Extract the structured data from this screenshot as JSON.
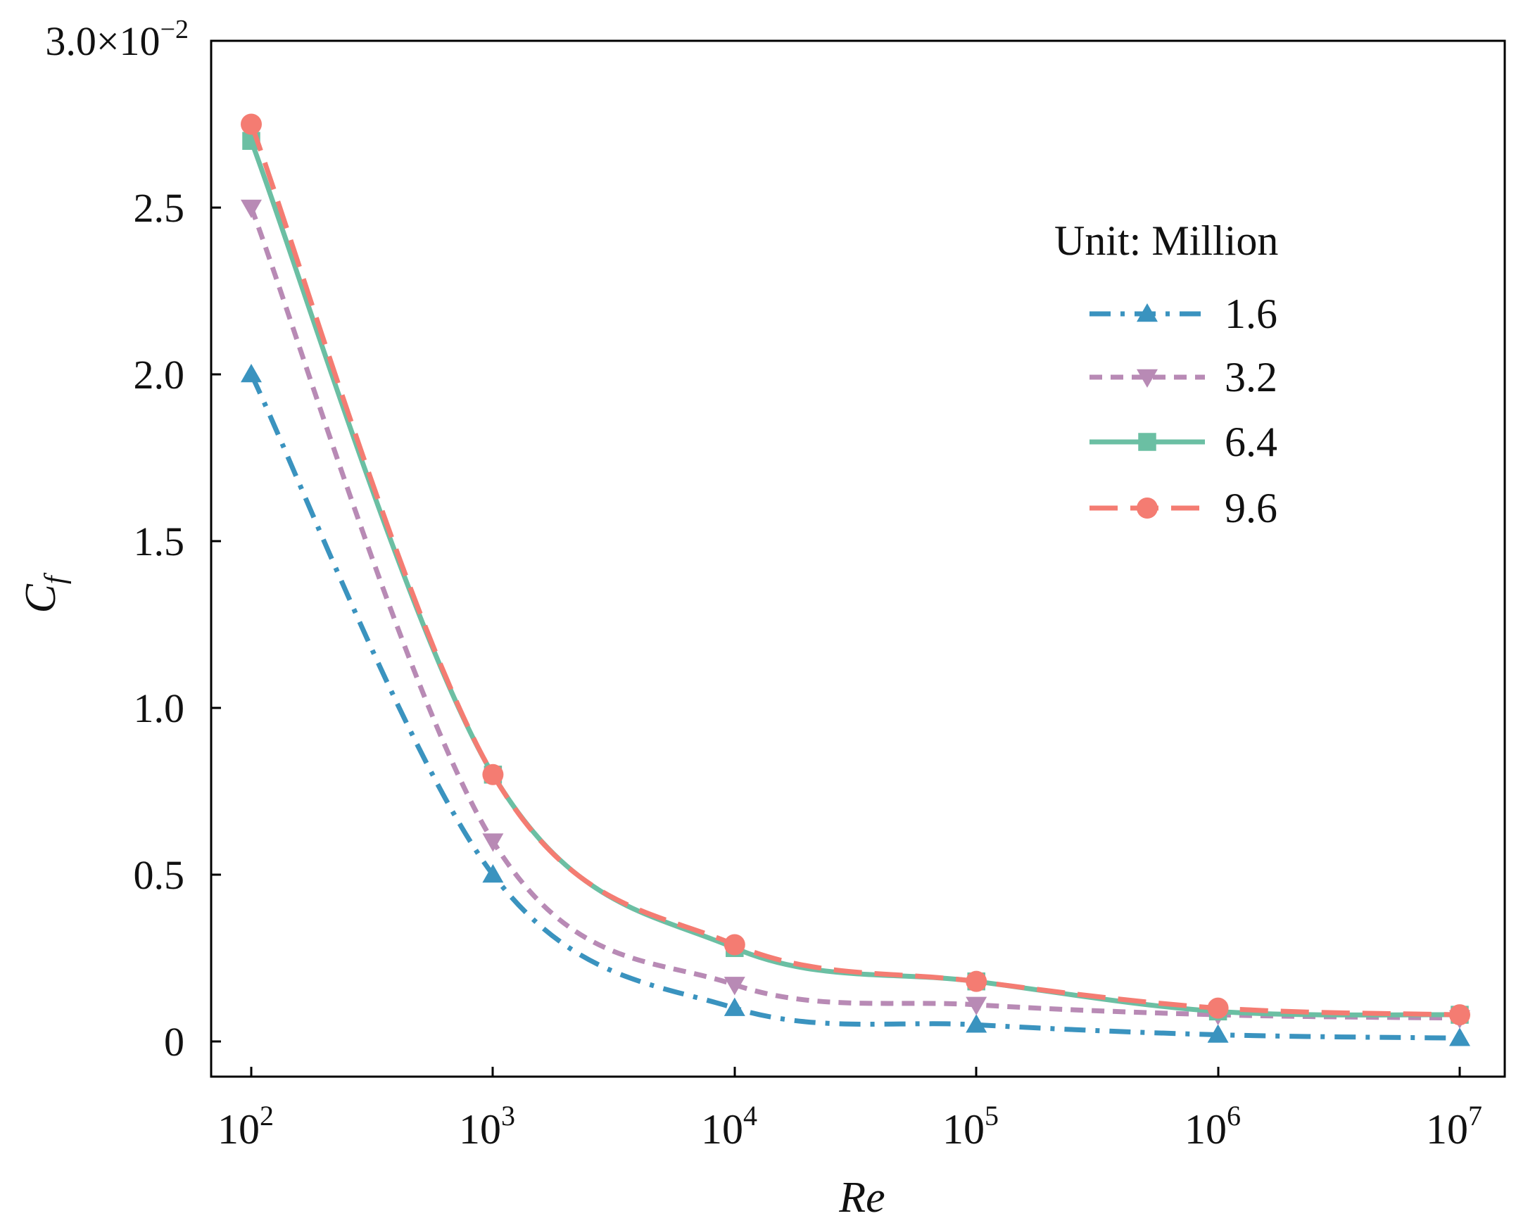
{
  "chart_data": {
    "type": "line",
    "title": "",
    "xlabel": "Re",
    "ylabel_main": "C",
    "ylabel_sub": "f",
    "x": [
      100,
      1000,
      10000,
      100000,
      1000000,
      10000000
    ],
    "x_scale": "log",
    "x_ticks": [
      {
        "base": "10",
        "exp": "2"
      },
      {
        "base": "10",
        "exp": "3"
      },
      {
        "base": "10",
        "exp": "4"
      },
      {
        "base": "10",
        "exp": "5"
      },
      {
        "base": "10",
        "exp": "6"
      },
      {
        "base": "10",
        "exp": "7"
      }
    ],
    "ylim": [
      -0.001,
      0.03
    ],
    "y_ticks": [
      {
        "value": 0,
        "label": "0"
      },
      {
        "value": 0.005,
        "label": "0.5"
      },
      {
        "value": 0.01,
        "label": "1.0"
      },
      {
        "value": 0.015,
        "label": "1.5"
      },
      {
        "value": 0.02,
        "label": "2.0"
      },
      {
        "value": 0.025,
        "label": "2.5"
      },
      {
        "value": 0.03,
        "label": "3.0×10",
        "exp": "−2"
      }
    ],
    "legend_title": "Unit: Million",
    "legend_position": "top-right",
    "series": [
      {
        "name": "1.6",
        "color": "#3A93BF",
        "marker": "triangle-up",
        "dash": "dashdot",
        "values": [
          0.02,
          0.005,
          0.001,
          0.0005,
          0.0002,
          0.0001
        ]
      },
      {
        "name": "3.2",
        "color": "#B88AB5",
        "marker": "triangle-down",
        "dash": "dashed",
        "values": [
          0.025,
          0.006,
          0.0017,
          0.0011,
          0.0008,
          0.0007
        ]
      },
      {
        "name": "6.4",
        "color": "#6BBFA3",
        "marker": "square",
        "dash": "solid",
        "values": [
          0.027,
          0.008,
          0.0028,
          0.0018,
          0.0009,
          0.0008
        ]
      },
      {
        "name": "9.6",
        "color": "#F47C72",
        "marker": "circle",
        "dash": "longdash",
        "values": [
          0.0275,
          0.008,
          0.0029,
          0.0018,
          0.001,
          0.0008
        ]
      }
    ]
  }
}
